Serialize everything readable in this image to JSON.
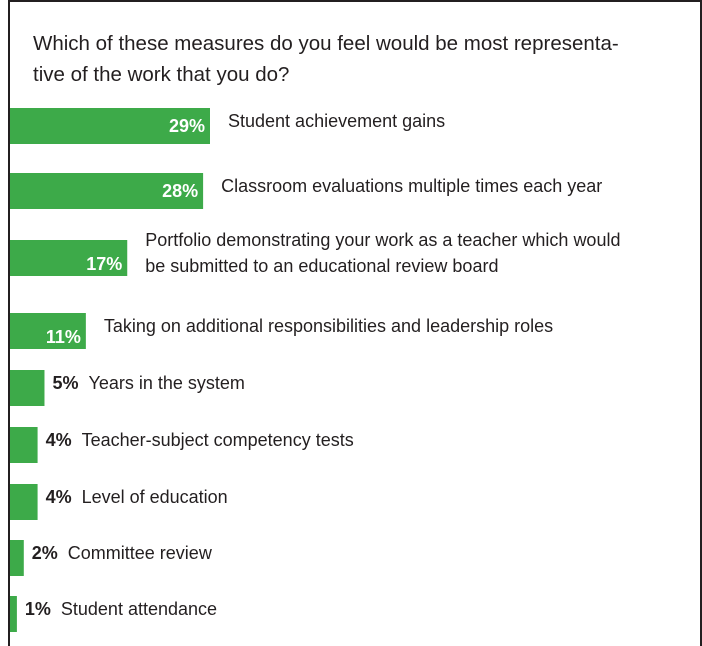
{
  "chart_data": {
    "type": "bar",
    "title": "Which of these measures do you feel would be most representative of the work that you do?",
    "title_lines": [
      "Which of these measures do you feel would be most representa-",
      "tive of the work that you do?"
    ],
    "orientation": "horizontal",
    "bar_color": "#3daa49",
    "value_text_color_inside": "#ffffff",
    "value_text_color_outside": "#231f20",
    "grid": false,
    "legend": "none",
    "xlim": [
      0,
      29
    ],
    "categories": [
      [
        "Student achievement gains"
      ],
      [
        "Classroom evaluations multiple times each year"
      ],
      [
        "Portfolio demonstrating your work as a teacher which would",
        "be submitted to an educational review board"
      ],
      [
        "Taking on additional responsibilities and leadership roles"
      ],
      [
        "Years in the system"
      ],
      [
        "Teacher-subject competency tests"
      ],
      [
        "Level of education"
      ],
      [
        "Committee review"
      ],
      [
        "Student attendance"
      ]
    ],
    "values": [
      29,
      28,
      17,
      11,
      5,
      4,
      4,
      2,
      1
    ],
    "value_labels": [
      "29%",
      "28%",
      "17%",
      "11%",
      "5%",
      "4%",
      "4%",
      "2%",
      "1%"
    ]
  }
}
